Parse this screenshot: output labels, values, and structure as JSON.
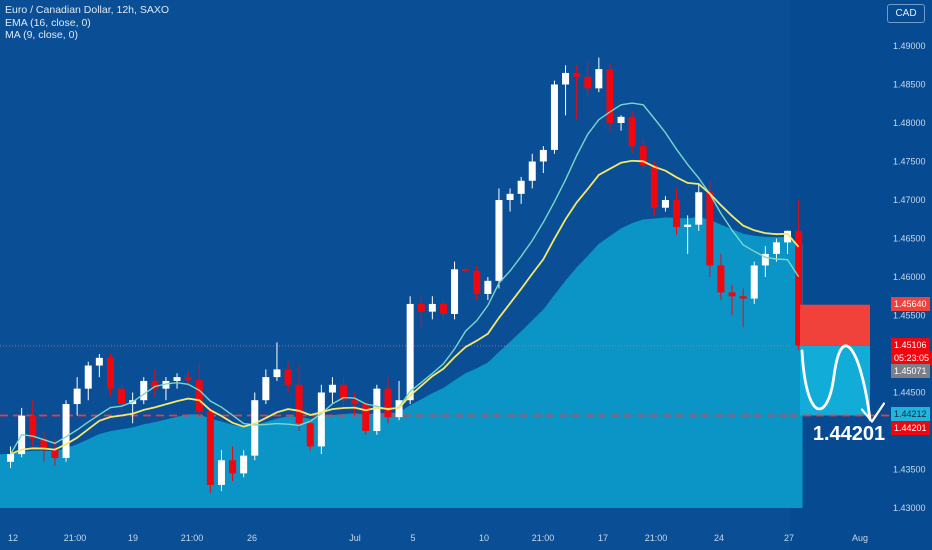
{
  "legend": {
    "symbol": "Euro / Canadian Dollar, 12h, SAXO",
    "ema": "EMA (16, close, 0)",
    "ma": "MA (9, close, 0)"
  },
  "currency_button": "CAD",
  "price_tags": {
    "target_zone_top": "1.45640",
    "last_price": "1.45106",
    "countdown": "05:23:05",
    "gray_tag": "1.45071",
    "cyan_tag": "1.44212",
    "target_price": "1.44201"
  },
  "annotation": {
    "target_text": "1.44201"
  },
  "colors": {
    "background": "#0a4f96",
    "up_candle": "#ffffff",
    "down_candle": "#f0060f",
    "ema_line": "#f3e86c",
    "ma_line": "#77d8c8",
    "area_fill": "#0b94c6",
    "target_line": "#f03a3a",
    "target_zone": "#f0413a",
    "projection": "#ffffff",
    "projection_fill": "#12acd9",
    "gray_tag": "#7a7f88",
    "cyan_tag": "#22b4d9"
  },
  "chart_data": {
    "type": "candlestick",
    "title": "Euro / Canadian Dollar, 12h, SAXO",
    "ylim": [
      1.4285,
      1.4915
    ],
    "y_ticks": [
      "1.49000",
      "1.48500",
      "1.48000",
      "1.47500",
      "1.47000",
      "1.46500",
      "1.46000",
      "1.45500",
      "1.45000",
      "1.44500",
      "1.44000",
      "1.43500",
      "1.43000"
    ],
    "x_ticks": [
      "12",
      "21:00",
      "19",
      "21:00",
      "26",
      "Jul",
      "5",
      "10",
      "21:00",
      "17",
      "21:00",
      "24",
      "27",
      "Aug"
    ],
    "series": [
      {
        "name": "EUR/CAD",
        "ohlc": [
          [
            1.436,
            1.438,
            1.4352,
            1.437
          ],
          [
            1.437,
            1.443,
            1.4366,
            1.442
          ],
          [
            1.442,
            1.444,
            1.438,
            1.439
          ],
          [
            1.439,
            1.44,
            1.436,
            1.4375
          ],
          [
            1.4375,
            1.439,
            1.4355,
            1.4365
          ],
          [
            1.4365,
            1.444,
            1.436,
            1.4435
          ],
          [
            1.4435,
            1.447,
            1.442,
            1.4455
          ],
          [
            1.4455,
            1.449,
            1.444,
            1.4485
          ],
          [
            1.4485,
            1.45,
            1.447,
            1.4495
          ],
          [
            1.4495,
            1.45,
            1.4445,
            1.4455
          ],
          [
            1.4455,
            1.446,
            1.4425,
            1.4435
          ],
          [
            1.4435,
            1.445,
            1.441,
            1.444
          ],
          [
            1.444,
            1.447,
            1.4435,
            1.4465
          ],
          [
            1.4465,
            1.448,
            1.4445,
            1.4455
          ],
          [
            1.4455,
            1.447,
            1.444,
            1.4465
          ],
          [
            1.4465,
            1.4475,
            1.4455,
            1.447
          ],
          [
            1.447,
            1.4478,
            1.4458,
            1.4466
          ],
          [
            1.4466,
            1.4488,
            1.442,
            1.4425
          ],
          [
            1.4425,
            1.443,
            1.432,
            1.433
          ],
          [
            1.433,
            1.4375,
            1.4322,
            1.4362
          ],
          [
            1.4362,
            1.438,
            1.4335,
            1.4345
          ],
          [
            1.4345,
            1.4375,
            1.434,
            1.4368
          ],
          [
            1.4368,
            1.445,
            1.4362,
            1.444
          ],
          [
            1.444,
            1.448,
            1.4435,
            1.447
          ],
          [
            1.447,
            1.4515,
            1.4465,
            1.448
          ],
          [
            1.448,
            1.449,
            1.445,
            1.446
          ],
          [
            1.446,
            1.4485,
            1.44,
            1.441
          ],
          [
            1.441,
            1.4415,
            1.4375,
            1.438
          ],
          [
            1.438,
            1.446,
            1.437,
            1.445
          ],
          [
            1.445,
            1.447,
            1.4435,
            1.446
          ],
          [
            1.446,
            1.447,
            1.443,
            1.444
          ],
          [
            1.444,
            1.445,
            1.442,
            1.4435
          ],
          [
            1.4435,
            1.444,
            1.4395,
            1.44
          ],
          [
            1.44,
            1.446,
            1.4395,
            1.4455
          ],
          [
            1.4455,
            1.447,
            1.441,
            1.4418
          ],
          [
            1.4418,
            1.4465,
            1.4414,
            1.444
          ],
          [
            1.444,
            1.4575,
            1.4435,
            1.4565
          ],
          [
            1.4565,
            1.4575,
            1.4535,
            1.4555
          ],
          [
            1.4555,
            1.4575,
            1.4545,
            1.4565
          ],
          [
            1.4565,
            1.457,
            1.4545,
            1.4552
          ],
          [
            1.4552,
            1.462,
            1.4545,
            1.461
          ],
          [
            1.461,
            1.4612,
            1.4605,
            1.4608
          ],
          [
            1.4608,
            1.4615,
            1.457,
            1.4578
          ],
          [
            1.4578,
            1.46,
            1.457,
            1.4595
          ],
          [
            1.4595,
            1.4715,
            1.4585,
            1.47
          ],
          [
            1.47,
            1.4715,
            1.4685,
            1.4708
          ],
          [
            1.4708,
            1.473,
            1.4695,
            1.4725
          ],
          [
            1.4725,
            1.476,
            1.4715,
            1.475
          ],
          [
            1.475,
            1.477,
            1.4735,
            1.4765
          ],
          [
            1.4765,
            1.4855,
            1.476,
            1.485
          ],
          [
            1.485,
            1.4875,
            1.481,
            1.4865
          ],
          [
            1.4865,
            1.4875,
            1.4805,
            1.486
          ],
          [
            1.486,
            1.488,
            1.4835,
            1.4845
          ],
          [
            1.4845,
            1.4885,
            1.484,
            1.487
          ],
          [
            1.487,
            1.4878,
            1.479,
            1.48
          ],
          [
            1.48,
            1.481,
            1.479,
            1.4808
          ],
          [
            1.4808,
            1.4815,
            1.476,
            1.477
          ],
          [
            1.477,
            1.478,
            1.474,
            1.4745
          ],
          [
            1.4745,
            1.475,
            1.468,
            1.469
          ],
          [
            1.469,
            1.4705,
            1.4685,
            1.47
          ],
          [
            1.47,
            1.4715,
            1.4655,
            1.4665
          ],
          [
            1.4665,
            1.468,
            1.463,
            1.4668
          ],
          [
            1.4668,
            1.472,
            1.466,
            1.471
          ],
          [
            1.471,
            1.4725,
            1.46,
            1.4615
          ],
          [
            1.4615,
            1.463,
            1.457,
            1.458
          ],
          [
            1.458,
            1.459,
            1.455,
            1.4575
          ],
          [
            1.4575,
            1.4585,
            1.4535,
            1.4572
          ],
          [
            1.4572,
            1.462,
            1.4565,
            1.4615
          ],
          [
            1.4615,
            1.464,
            1.46,
            1.463
          ],
          [
            1.463,
            1.465,
            1.462,
            1.4645
          ],
          [
            1.4645,
            1.466,
            1.463,
            1.466
          ],
          [
            1.466,
            1.47,
            1.4505,
            1.4511
          ]
        ]
      }
    ],
    "indicators": [
      {
        "name": "EMA (16, close, 0)",
        "type": "ema",
        "period": 16
      },
      {
        "name": "MA (9, close, 0)",
        "type": "sma",
        "period": 9
      }
    ],
    "levels": {
      "last_price": 1.45106,
      "target": 1.44201,
      "target_zone": [
        1.45106,
        1.4564
      ],
      "gray": 1.45071,
      "cyan": 1.44212
    },
    "grid": false,
    "legend_position": "top-left"
  }
}
